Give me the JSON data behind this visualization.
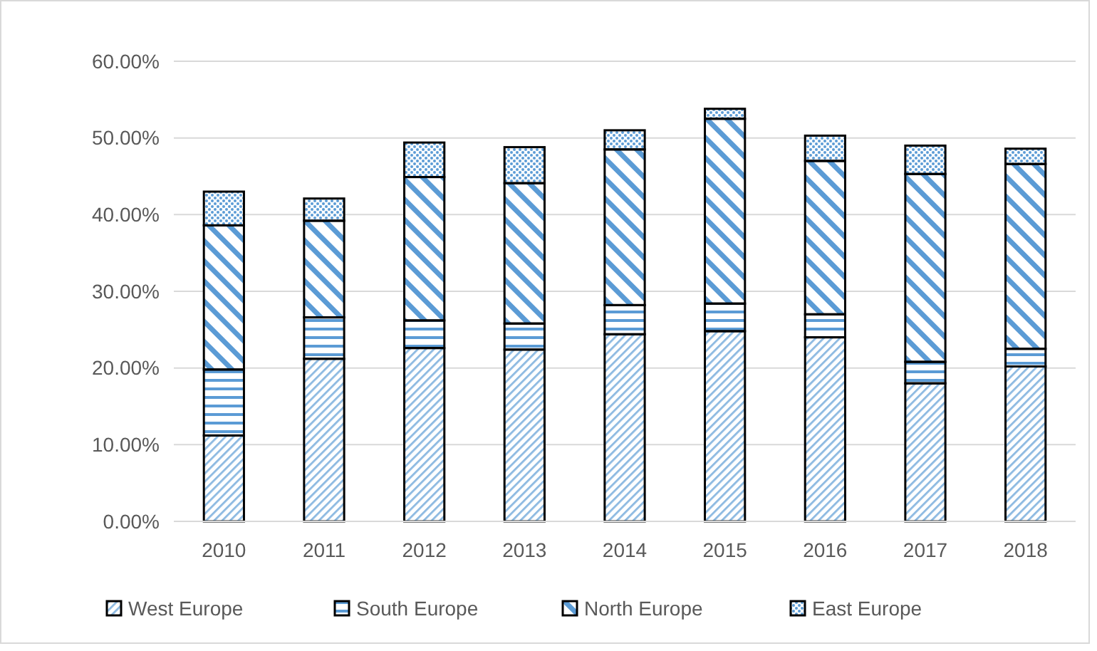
{
  "chart_data": {
    "type": "bar",
    "stacked": true,
    "categories": [
      "2010",
      "2011",
      "2012",
      "2013",
      "2014",
      "2015",
      "2016",
      "2017",
      "2018"
    ],
    "series": [
      {
        "name": "West Europe",
        "color": "#5b9bd5",
        "values": [
          11.2,
          21.2,
          22.6,
          22.4,
          24.4,
          24.8,
          24.0,
          18.0,
          20.2
        ]
      },
      {
        "name": "South Europe",
        "color": "#5b9bd5",
        "values": [
          8.6,
          5.4,
          3.6,
          3.4,
          3.8,
          3.6,
          3.0,
          2.8,
          2.3
        ]
      },
      {
        "name": "North Europe",
        "color": "#5b9bd5",
        "values": [
          18.8,
          12.6,
          18.7,
          18.3,
          20.3,
          24.1,
          20.0,
          24.5,
          24.1
        ]
      },
      {
        "name": "East Europe",
        "color": "#5b9bd5",
        "values": [
          4.4,
          2.9,
          4.5,
          4.7,
          2.5,
          1.3,
          3.3,
          3.7,
          2.0
        ]
      }
    ],
    "ylim": [
      0,
      60
    ],
    "yticks": [
      {
        "value": 0,
        "label": "0.00%"
      },
      {
        "value": 10,
        "label": "10.00%"
      },
      {
        "value": 20,
        "label": "20.00%"
      },
      {
        "value": 30,
        "label": "30.00%"
      },
      {
        "value": 40,
        "label": "40.00%"
      },
      {
        "value": 50,
        "label": "50.00%"
      },
      {
        "value": 60,
        "label": "60.00%"
      }
    ],
    "grid": "y",
    "legend": "bottom"
  }
}
